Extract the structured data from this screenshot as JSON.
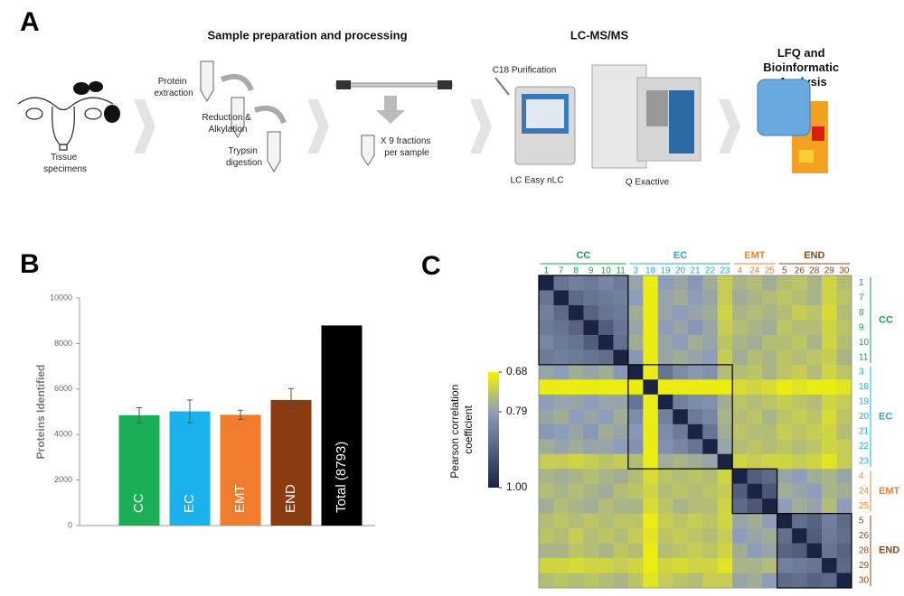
{
  "diagram": {
    "label": "A",
    "headings": {
      "preparation": "Sample preparation and processing",
      "lcms": "LC-MS/MS",
      "analysis": [
        "LFQ and",
        "Bioinformatic",
        "Analysis"
      ]
    },
    "captions": {
      "tissue": [
        "Tissue",
        "specimens"
      ],
      "extraction": [
        "Protein",
        "extraction"
      ],
      "reduction": [
        "Reduction &",
        "Alkylation"
      ],
      "digestion": [
        "Trypsin",
        "digestion"
      ],
      "fractions": [
        "X 9 fractions",
        "per sample"
      ],
      "purification": "C18 Purification",
      "nlc": "LC Easy nLC",
      "exactive": "Q Exactive"
    }
  },
  "chart_data": [
    {
      "type": "bar",
      "panel": "B",
      "y_label": "Proteins Identified",
      "categories": [
        "CC",
        "EC",
        "EMT",
        "END",
        "Total (8793)"
      ],
      "values": [
        4850,
        5020,
        4870,
        5520,
        8793
      ],
      "errors": [
        330,
        500,
        200,
        500,
        null
      ],
      "colors": [
        "#1aae57",
        "#1bb1ec",
        "#f07d2e",
        "#8b3b10",
        "#000000"
      ],
      "ylim": [
        0,
        10000
      ],
      "yticks": [
        0,
        2000,
        4000,
        6000,
        8000,
        10000
      ],
      "grid": false
    },
    {
      "type": "heatmap",
      "panel": "C",
      "colorbar_label": [
        "Pearson correlation",
        "coefficient"
      ],
      "cticks": [
        0.68,
        0.79,
        {
          "value": 1,
          "label": "1.00"
        }
      ],
      "ccolors": [
        "#f4f400",
        "#8e9db9",
        "#1a2344"
      ],
      "groups": [
        {
          "name": "CC",
          "color": "#1e9e4c",
          "labels": [
            "1",
            "7",
            "8",
            "9",
            "10",
            "11"
          ]
        },
        {
          "name": "EC",
          "color": "#27a8d8",
          "labels": [
            "3",
            "18",
            "19",
            "20",
            "21",
            "22",
            "23"
          ]
        },
        {
          "name": "EMT",
          "color": "#e5863a",
          "labels": [
            "4",
            "24",
            "25"
          ]
        },
        {
          "name": "END",
          "color": "#8a4a1e",
          "labels": [
            "5",
            "26",
            "28",
            "29",
            "30"
          ]
        }
      ],
      "matrix": [
        [
          1.0,
          0.86,
          0.84,
          0.85,
          0.83,
          0.85,
          0.78,
          0.69,
          0.79,
          0.78,
          0.8,
          0.77,
          0.73,
          0.76,
          0.75,
          0.77,
          0.75,
          0.74,
          0.76,
          0.72,
          0.75
        ],
        [
          0.86,
          1.0,
          0.88,
          0.86,
          0.85,
          0.84,
          0.79,
          0.69,
          0.78,
          0.77,
          0.79,
          0.78,
          0.73,
          0.77,
          0.76,
          0.75,
          0.74,
          0.75,
          0.76,
          0.72,
          0.74
        ],
        [
          0.84,
          0.88,
          1.0,
          0.89,
          0.86,
          0.85,
          0.77,
          0.69,
          0.78,
          0.79,
          0.78,
          0.77,
          0.72,
          0.76,
          0.75,
          0.76,
          0.75,
          0.73,
          0.74,
          0.71,
          0.75
        ],
        [
          0.85,
          0.86,
          0.89,
          1.0,
          0.9,
          0.86,
          0.78,
          0.69,
          0.79,
          0.78,
          0.8,
          0.78,
          0.73,
          0.75,
          0.76,
          0.77,
          0.74,
          0.75,
          0.75,
          0.72,
          0.74
        ],
        [
          0.83,
          0.85,
          0.86,
          0.9,
          1.0,
          0.87,
          0.77,
          0.69,
          0.78,
          0.79,
          0.77,
          0.78,
          0.74,
          0.76,
          0.77,
          0.75,
          0.75,
          0.74,
          0.76,
          0.72,
          0.75
        ],
        [
          0.85,
          0.84,
          0.85,
          0.86,
          0.87,
          1.0,
          0.8,
          0.69,
          0.78,
          0.77,
          0.78,
          0.79,
          0.73,
          0.77,
          0.75,
          0.76,
          0.74,
          0.75,
          0.74,
          0.73,
          0.76
        ],
        [
          0.78,
          0.79,
          0.77,
          0.78,
          0.77,
          0.8,
          1.0,
          0.69,
          0.86,
          0.82,
          0.8,
          0.81,
          0.75,
          0.75,
          0.74,
          0.76,
          0.74,
          0.73,
          0.75,
          0.72,
          0.74
        ],
        [
          0.69,
          0.69,
          0.69,
          0.69,
          0.69,
          0.69,
          0.69,
          1.0,
          0.69,
          0.69,
          0.69,
          0.69,
          0.69,
          0.71,
          0.72,
          0.71,
          0.69,
          0.7,
          0.69,
          0.69,
          0.7
        ],
        [
          0.79,
          0.78,
          0.78,
          0.79,
          0.78,
          0.78,
          0.86,
          0.69,
          1.0,
          0.84,
          0.82,
          0.81,
          0.77,
          0.74,
          0.75,
          0.74,
          0.73,
          0.74,
          0.75,
          0.72,
          0.73
        ],
        [
          0.78,
          0.77,
          0.79,
          0.78,
          0.79,
          0.77,
          0.82,
          0.69,
          0.84,
          1.0,
          0.85,
          0.83,
          0.76,
          0.75,
          0.74,
          0.76,
          0.74,
          0.73,
          0.74,
          0.71,
          0.74
        ],
        [
          0.8,
          0.79,
          0.78,
          0.8,
          0.77,
          0.78,
          0.8,
          0.69,
          0.82,
          0.85,
          1.0,
          0.86,
          0.77,
          0.74,
          0.75,
          0.75,
          0.73,
          0.74,
          0.73,
          0.72,
          0.75
        ],
        [
          0.77,
          0.78,
          0.77,
          0.78,
          0.78,
          0.79,
          0.81,
          0.69,
          0.81,
          0.83,
          0.86,
          1.0,
          0.78,
          0.75,
          0.74,
          0.75,
          0.74,
          0.75,
          0.74,
          0.72,
          0.73
        ],
        [
          0.73,
          0.73,
          0.72,
          0.73,
          0.74,
          0.73,
          0.75,
          0.69,
          0.77,
          0.76,
          0.77,
          0.78,
          1.0,
          0.72,
          0.73,
          0.72,
          0.72,
          0.73,
          0.72,
          0.7,
          0.73
        ],
        [
          0.76,
          0.77,
          0.76,
          0.75,
          0.76,
          0.77,
          0.75,
          0.71,
          0.74,
          0.75,
          0.74,
          0.75,
          0.72,
          1.0,
          0.9,
          0.88,
          0.78,
          0.79,
          0.77,
          0.76,
          0.78
        ],
        [
          0.75,
          0.76,
          0.75,
          0.76,
          0.77,
          0.75,
          0.74,
          0.72,
          0.75,
          0.74,
          0.75,
          0.74,
          0.73,
          0.9,
          1.0,
          0.91,
          0.77,
          0.78,
          0.79,
          0.76,
          0.77
        ],
        [
          0.77,
          0.75,
          0.76,
          0.77,
          0.75,
          0.76,
          0.76,
          0.71,
          0.74,
          0.76,
          0.75,
          0.75,
          0.72,
          0.88,
          0.91,
          1.0,
          0.79,
          0.77,
          0.78,
          0.75,
          0.79
        ],
        [
          0.75,
          0.74,
          0.75,
          0.74,
          0.75,
          0.74,
          0.74,
          0.69,
          0.73,
          0.74,
          0.73,
          0.74,
          0.72,
          0.78,
          0.77,
          0.79,
          1.0,
          0.87,
          0.89,
          0.84,
          0.88
        ],
        [
          0.74,
          0.75,
          0.73,
          0.75,
          0.74,
          0.75,
          0.73,
          0.7,
          0.74,
          0.73,
          0.74,
          0.75,
          0.73,
          0.79,
          0.78,
          0.77,
          0.87,
          1.0,
          0.9,
          0.85,
          0.87
        ],
        [
          0.76,
          0.76,
          0.74,
          0.75,
          0.76,
          0.74,
          0.75,
          0.69,
          0.75,
          0.74,
          0.73,
          0.74,
          0.72,
          0.77,
          0.79,
          0.78,
          0.89,
          0.9,
          1.0,
          0.86,
          0.89
        ],
        [
          0.72,
          0.72,
          0.71,
          0.72,
          0.72,
          0.73,
          0.72,
          0.69,
          0.72,
          0.71,
          0.72,
          0.72,
          0.7,
          0.76,
          0.76,
          0.75,
          0.84,
          0.85,
          0.86,
          1.0,
          0.88
        ],
        [
          0.75,
          0.74,
          0.75,
          0.74,
          0.75,
          0.76,
          0.74,
          0.7,
          0.73,
          0.74,
          0.75,
          0.73,
          0.73,
          0.78,
          0.77,
          0.79,
          0.88,
          0.87,
          0.89,
          0.88,
          1.0
        ]
      ]
    }
  ]
}
